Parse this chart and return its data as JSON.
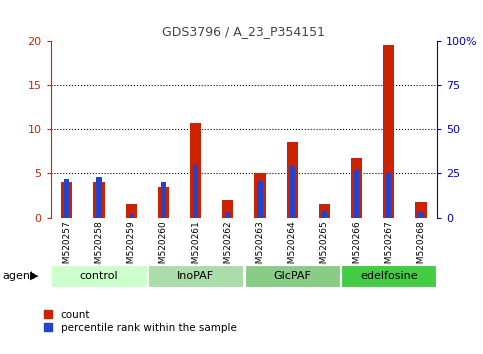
{
  "title": "GDS3796 / A_23_P354151",
  "samples": [
    "GSM520257",
    "GSM520258",
    "GSM520259",
    "GSM520260",
    "GSM520261",
    "GSM520262",
    "GSM520263",
    "GSM520264",
    "GSM520265",
    "GSM520266",
    "GSM520267",
    "GSM520268"
  ],
  "red_values": [
    4.0,
    4.0,
    1.5,
    3.5,
    10.7,
    2.0,
    5.0,
    8.5,
    1.6,
    6.8,
    19.5,
    1.8
  ],
  "blue_values_pct": [
    22,
    23,
    2,
    20,
    30,
    3,
    21,
    29,
    4,
    27,
    25,
    3
  ],
  "groups": [
    {
      "label": "control",
      "start": 0,
      "end": 3,
      "color": "#ccffcc"
    },
    {
      "label": "InoPAF",
      "start": 3,
      "end": 6,
      "color": "#99ee99"
    },
    {
      "label": "GlcPAF",
      "start": 6,
      "end": 9,
      "color": "#66dd66"
    },
    {
      "label": "edelfosine",
      "start": 9,
      "end": 12,
      "color": "#44cc44"
    }
  ],
  "left_ylim": [
    0,
    20
  ],
  "right_ylim": [
    0,
    100
  ],
  "left_yticks": [
    0,
    5,
    10,
    15,
    20
  ],
  "right_yticks": [
    0,
    25,
    50,
    75,
    100
  ],
  "right_yticklabels": [
    "0",
    "25",
    "50",
    "75",
    "100%"
  ],
  "red_color": "#cc2200",
  "blue_color": "#2244cc",
  "plot_bg": "#ffffff",
  "tick_area_bg": "#cccccc",
  "left_axis_color": "#cc2200",
  "right_axis_color": "#0000cc",
  "title_color": "#444444",
  "bar_width": 0.35,
  "group_colors": [
    "#ccffcc",
    "#aaddaa",
    "#88cc88",
    "#44cc44"
  ]
}
